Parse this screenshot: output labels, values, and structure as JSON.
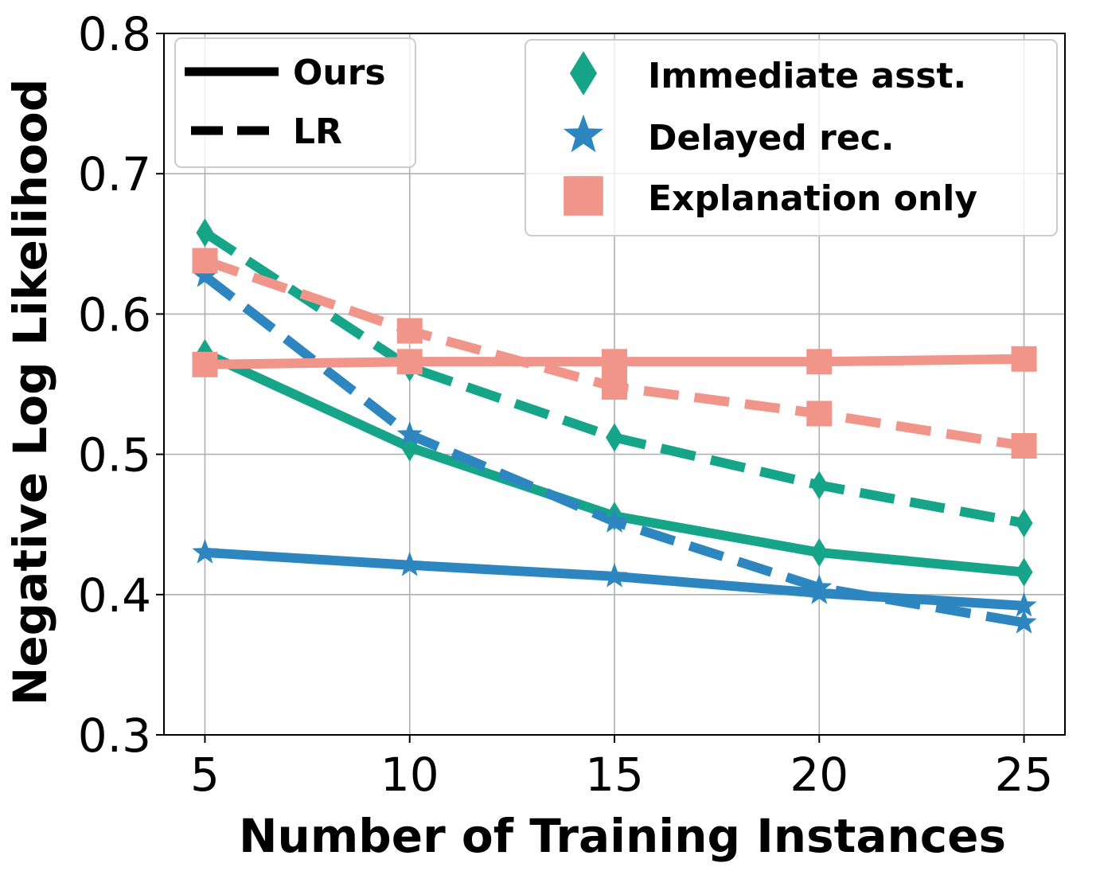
{
  "chart_data": {
    "type": "line",
    "xlabel": "Number of Training Instances",
    "ylabel": "Negative Log Likelihood",
    "x": [
      5,
      10,
      15,
      20,
      25
    ],
    "xticks": [
      "5",
      "10",
      "15",
      "20",
      "25"
    ],
    "yticks": [
      "0.3",
      "0.4",
      "0.5",
      "0.6",
      "0.7",
      "0.8"
    ],
    "ylim": [
      0.3,
      0.8
    ],
    "xlim": [
      4,
      26
    ],
    "grid": true,
    "style_legend": {
      "placement": "top-left",
      "items": [
        {
          "label": "Ours",
          "dash": "solid"
        },
        {
          "label": "LR",
          "dash": "dashed"
        }
      ]
    },
    "condition_legend": {
      "placement": "top-right",
      "items": [
        {
          "label": "Immediate asst.",
          "marker": "diamond",
          "color": "#17a589"
        },
        {
          "label": "Delayed rec.",
          "marker": "star",
          "color": "#2e86c1"
        },
        {
          "label": "Explanation only",
          "marker": "square",
          "color": "#f1948a"
        }
      ]
    },
    "series": [
      {
        "name": "Immediate asst. (Ours)",
        "condition": "Immediate asst.",
        "method": "Ours",
        "marker": "diamond",
        "color": "#17a589",
        "dash": "solid",
        "values": [
          0.572,
          0.505,
          0.456,
          0.43,
          0.416
        ]
      },
      {
        "name": "Immediate asst. (LR)",
        "condition": "Immediate asst.",
        "method": "LR",
        "marker": "diamond",
        "color": "#17a589",
        "dash": "dashed",
        "values": [
          0.658,
          0.562,
          0.512,
          0.478,
          0.451
        ]
      },
      {
        "name": "Delayed rec. (Ours)",
        "condition": "Delayed rec.",
        "method": "Ours",
        "marker": "star",
        "color": "#2e86c1",
        "dash": "solid",
        "values": [
          0.43,
          0.421,
          0.413,
          0.401,
          0.392
        ]
      },
      {
        "name": "Delayed rec. (LR)",
        "condition": "Delayed rec.",
        "method": "LR",
        "marker": "star",
        "color": "#2e86c1",
        "dash": "dashed",
        "values": [
          0.627,
          0.514,
          0.452,
          0.405,
          0.38
        ]
      },
      {
        "name": "Explanation only (Ours)",
        "condition": "Explanation only",
        "method": "Ours",
        "marker": "square",
        "color": "#f1948a",
        "dash": "solid",
        "values": [
          0.564,
          0.566,
          0.566,
          0.566,
          0.568
        ]
      },
      {
        "name": "Explanation only (LR)",
        "condition": "Explanation only",
        "method": "LR",
        "marker": "square",
        "color": "#f1948a",
        "dash": "dashed",
        "values": [
          0.638,
          0.588,
          0.548,
          0.529,
          0.506
        ]
      }
    ]
  }
}
